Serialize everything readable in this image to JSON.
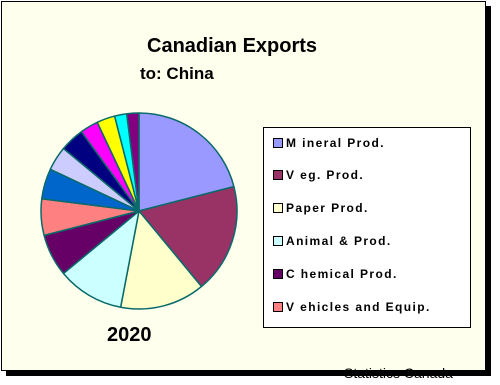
{
  "chart_data": {
    "type": "pie",
    "title": "Canadian Exports",
    "subtitle": "to:  China",
    "year_label": "2020",
    "source": "Statistics Canada",
    "legend_position": "right",
    "slices": [
      {
        "name": "M ineral Prod.",
        "value": 21,
        "color": "#9999ff"
      },
      {
        "name": "V eg. Prod.",
        "value": 18,
        "color": "#993366"
      },
      {
        "name": "Paper Prod.",
        "value": 14,
        "color": "#ffffcc"
      },
      {
        "name": "Animal & Prod.",
        "value": 11,
        "color": "#ccffff"
      },
      {
        "name": "C hemical Prod.",
        "value": 7,
        "color": "#660066"
      },
      {
        "name": "V ehicles and Equip.",
        "value": 6,
        "color": "#ff8080"
      },
      {
        "name": "",
        "value": 5,
        "color": "#0066cc"
      },
      {
        "name": "",
        "value": 4,
        "color": "#ccccff"
      },
      {
        "name": "",
        "value": 4,
        "color": "#000080"
      },
      {
        "name": "",
        "value": 3,
        "color": "#ff00ff"
      },
      {
        "name": "",
        "value": 3,
        "color": "#ffff00"
      },
      {
        "name": "",
        "value": 2,
        "color": "#00ffff"
      },
      {
        "name": "",
        "value": 2,
        "color": "#800080"
      }
    ]
  }
}
